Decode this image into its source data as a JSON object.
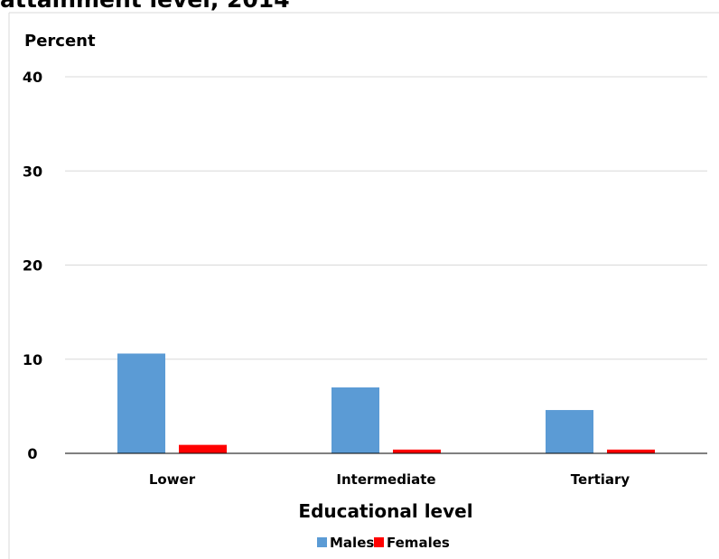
{
  "chart_data": {
    "type": "bar",
    "title": "attainment level, 2014",
    "ylabel": "Percent",
    "xlabel": "Educational level",
    "categories": [
      "Lower",
      "Intermediate",
      "Tertiary"
    ],
    "series": [
      {
        "name": "Males",
        "values": [
          10.6,
          7.0,
          4.6
        ],
        "color": "#5b9bd5"
      },
      {
        "name": "Females",
        "values": [
          0.9,
          0.4,
          0.4
        ],
        "color": "#ff0000"
      }
    ],
    "ylim": [
      0,
      40
    ],
    "yticks": [
      0,
      10,
      20,
      30,
      40
    ],
    "grid": true,
    "legend": "bottom"
  }
}
